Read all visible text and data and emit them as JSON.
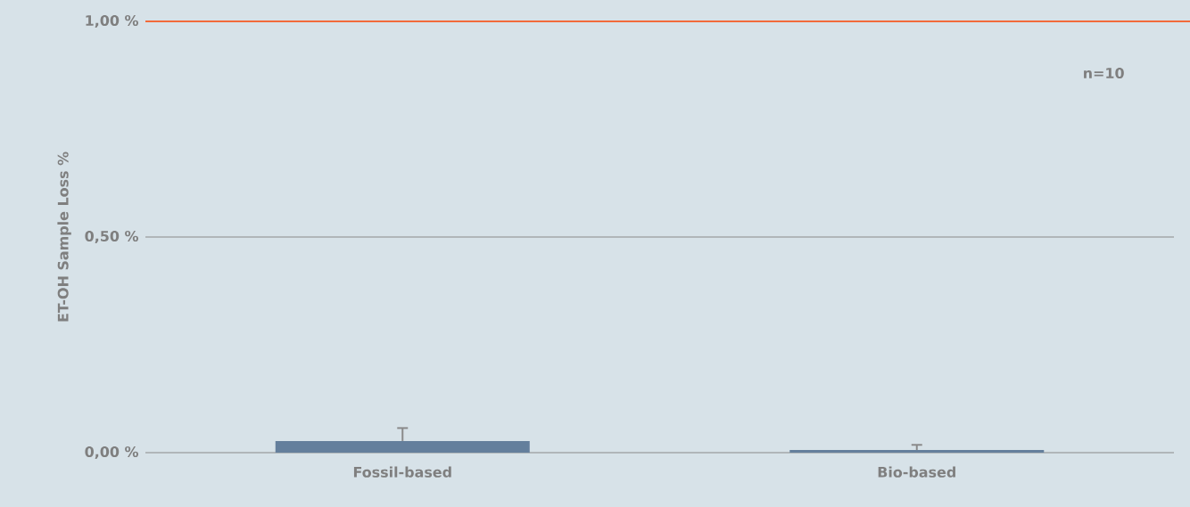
{
  "chart_data": {
    "type": "bar",
    "ylabel": "ET-OH Sample Loss %",
    "categories": [
      "Fossil-based",
      "Bio-based"
    ],
    "values": [
      0.027,
      0.006
    ],
    "errors": [
      [
        0.027,
        0.057
      ],
      [
        0.006,
        0.018
      ]
    ],
    "color": "#647f9c",
    "ylim": [
      0,
      1
    ],
    "yticks": [
      {
        "value": 0,
        "label": "0,00 %"
      },
      {
        "value": 0.5,
        "label": "0,50 %"
      },
      {
        "value": 1,
        "label": "1,00 %"
      }
    ],
    "grid": "y",
    "ref_lines": [
      {
        "axis": "y",
        "value": 1,
        "color": "#f26a3a"
      }
    ],
    "annotations": [
      "n=10"
    ]
  }
}
